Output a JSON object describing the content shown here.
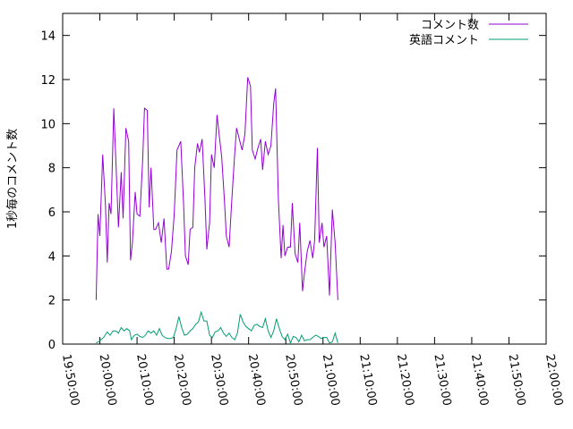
{
  "chart_data": {
    "type": "line",
    "title": "",
    "ylabel": "1秒毎のコメント数",
    "xlabel": "",
    "ylim": [
      0,
      15
    ],
    "y_ticks": [
      0,
      2,
      4,
      6,
      8,
      10,
      12,
      14
    ],
    "y_tick_labels": [
      "0",
      "2",
      "4",
      "6",
      "8",
      "10",
      "12",
      "14"
    ],
    "x_range": [
      "19:50:00",
      "22:00:00"
    ],
    "x_ticks": [
      "19:50:00",
      "20:00:00",
      "20:10:00",
      "20:20:00",
      "20:30:00",
      "20:40:00",
      "20:50:00",
      "21:00:00",
      "21:10:00",
      "21:20:00",
      "21:30:00",
      "21:40:00",
      "21:50:00",
      "22:00:00"
    ],
    "legend_position": "top-right",
    "grid": false,
    "series": [
      {
        "name": "コメント数",
        "color": "#9400d3",
        "points": [
          [
            "19:59:00",
            2.0
          ],
          [
            "19:59:30",
            5.9
          ],
          [
            "20:00:00",
            4.9
          ],
          [
            "20:00:45",
            8.6
          ],
          [
            "20:01:30",
            6.3
          ],
          [
            "20:02:00",
            3.7
          ],
          [
            "20:02:30",
            6.4
          ],
          [
            "20:03:00",
            5.9
          ],
          [
            "20:03:45",
            10.7
          ],
          [
            "20:04:30",
            7.5
          ],
          [
            "20:05:00",
            5.3
          ],
          [
            "20:05:45",
            7.8
          ],
          [
            "20:06:15",
            5.7
          ],
          [
            "20:07:00",
            9.8
          ],
          [
            "20:07:45",
            9.2
          ],
          [
            "20:08:15",
            3.8
          ],
          [
            "20:08:45",
            4.6
          ],
          [
            "20:09:30",
            6.9
          ],
          [
            "20:10:00",
            5.9
          ],
          [
            "20:10:45",
            5.8
          ],
          [
            "20:11:30",
            8.3
          ],
          [
            "20:12:00",
            10.7
          ],
          [
            "20:12:45",
            10.6
          ],
          [
            "20:13:15",
            6.2
          ],
          [
            "20:13:45",
            8.0
          ],
          [
            "20:14:30",
            5.2
          ],
          [
            "20:15:00",
            5.2
          ],
          [
            "20:15:45",
            5.5
          ],
          [
            "20:16:30",
            4.6
          ],
          [
            "20:17:15",
            5.7
          ],
          [
            "20:18:00",
            3.4
          ],
          [
            "20:18:30",
            3.4
          ],
          [
            "20:19:15",
            4.2
          ],
          [
            "20:20:00",
            5.9
          ],
          [
            "20:20:45",
            8.8
          ],
          [
            "20:21:45",
            9.2
          ],
          [
            "20:22:30",
            6.4
          ],
          [
            "20:23:00",
            4.0
          ],
          [
            "20:23:45",
            3.6
          ],
          [
            "20:24:15",
            5.2
          ],
          [
            "20:25:00",
            5.3
          ],
          [
            "20:25:30",
            8.0
          ],
          [
            "20:26:15",
            9.1
          ],
          [
            "20:26:45",
            8.7
          ],
          [
            "20:27:30",
            9.3
          ],
          [
            "20:28:15",
            6.6
          ],
          [
            "20:28:45",
            4.3
          ],
          [
            "20:29:30",
            5.5
          ],
          [
            "20:30:00",
            8.6
          ],
          [
            "20:30:45",
            8.0
          ],
          [
            "20:31:30",
            10.4
          ],
          [
            "20:32:00",
            9.6
          ],
          [
            "20:32:45",
            8.5
          ],
          [
            "20:33:30",
            6.5
          ],
          [
            "20:34:00",
            4.9
          ],
          [
            "20:34:45",
            4.4
          ],
          [
            "20:35:30",
            6.6
          ],
          [
            "20:36:15",
            8.6
          ],
          [
            "20:36:45",
            9.8
          ],
          [
            "20:37:30",
            9.3
          ],
          [
            "20:38:15",
            8.8
          ],
          [
            "20:39:00",
            9.5
          ],
          [
            "20:39:45",
            12.1
          ],
          [
            "20:40:30",
            11.7
          ],
          [
            "20:41:00",
            8.8
          ],
          [
            "20:41:45",
            8.4
          ],
          [
            "20:42:30",
            8.9
          ],
          [
            "20:43:15",
            9.3
          ],
          [
            "20:43:45",
            7.9
          ],
          [
            "20:44:30",
            9.2
          ],
          [
            "20:45:15",
            8.6
          ],
          [
            "20:46:00",
            9.0
          ],
          [
            "20:46:45",
            10.9
          ],
          [
            "20:47:15",
            11.6
          ],
          [
            "20:48:00",
            6.6
          ],
          [
            "20:48:45",
            3.9
          ],
          [
            "20:49:15",
            5.4
          ],
          [
            "20:49:45",
            4.0
          ],
          [
            "20:50:30",
            4.4
          ],
          [
            "20:51:15",
            4.4
          ],
          [
            "20:51:45",
            6.4
          ],
          [
            "20:52:30",
            4.1
          ],
          [
            "20:53:15",
            3.7
          ],
          [
            "20:53:45",
            5.5
          ],
          [
            "20:54:30",
            2.4
          ],
          [
            "20:55:00",
            3.2
          ],
          [
            "20:55:45",
            4.2
          ],
          [
            "20:56:30",
            4.7
          ],
          [
            "20:57:15",
            3.9
          ],
          [
            "20:57:45",
            4.7
          ],
          [
            "20:58:30",
            8.9
          ],
          [
            "20:59:00",
            4.6
          ],
          [
            "20:59:45",
            5.5
          ],
          [
            "21:00:15",
            4.4
          ],
          [
            "21:01:00",
            4.9
          ],
          [
            "21:01:45",
            2.2
          ],
          [
            "21:02:30",
            6.1
          ],
          [
            "21:03:15",
            4.6
          ],
          [
            "21:04:00",
            2.0
          ]
        ]
      },
      {
        "name": "英語コメント",
        "color": "#009e73",
        "points": [
          [
            "19:59:00",
            0.05
          ],
          [
            "20:00:00",
            0.15
          ],
          [
            "20:01:00",
            0.3
          ],
          [
            "20:02:00",
            0.55
          ],
          [
            "20:02:45",
            0.4
          ],
          [
            "20:03:30",
            0.6
          ],
          [
            "20:04:15",
            0.6
          ],
          [
            "20:05:00",
            0.5
          ],
          [
            "20:05:45",
            0.75
          ],
          [
            "20:06:30",
            0.6
          ],
          [
            "20:07:15",
            0.7
          ],
          [
            "20:08:00",
            0.6
          ],
          [
            "20:08:30",
            0.2
          ],
          [
            "20:09:15",
            0.4
          ],
          [
            "20:10:00",
            0.45
          ],
          [
            "20:10:45",
            0.35
          ],
          [
            "20:11:30",
            0.3
          ],
          [
            "20:12:15",
            0.4
          ],
          [
            "20:13:00",
            0.6
          ],
          [
            "20:13:45",
            0.5
          ],
          [
            "20:14:30",
            0.6
          ],
          [
            "20:15:15",
            0.4
          ],
          [
            "20:16:00",
            0.7
          ],
          [
            "20:16:45",
            0.4
          ],
          [
            "20:17:30",
            0.3
          ],
          [
            "20:18:15",
            0.25
          ],
          [
            "20:19:00",
            0.25
          ],
          [
            "20:19:45",
            0.3
          ],
          [
            "20:20:30",
            0.7
          ],
          [
            "20:21:15",
            1.25
          ],
          [
            "20:22:00",
            0.75
          ],
          [
            "20:22:45",
            0.4
          ],
          [
            "20:23:30",
            0.45
          ],
          [
            "20:24:15",
            0.6
          ],
          [
            "20:25:00",
            0.7
          ],
          [
            "20:25:45",
            0.9
          ],
          [
            "20:26:30",
            1.0
          ],
          [
            "20:27:15",
            1.45
          ],
          [
            "20:28:00",
            1.05
          ],
          [
            "20:28:45",
            1.05
          ],
          [
            "20:29:30",
            0.4
          ],
          [
            "20:30:15",
            0.3
          ],
          [
            "20:31:00",
            0.55
          ],
          [
            "20:31:45",
            0.6
          ],
          [
            "20:32:30",
            0.75
          ],
          [
            "20:33:15",
            0.5
          ],
          [
            "20:34:00",
            0.35
          ],
          [
            "20:34:45",
            0.5
          ],
          [
            "20:35:30",
            0.3
          ],
          [
            "20:36:15",
            0.2
          ],
          [
            "20:37:00",
            0.5
          ],
          [
            "20:37:45",
            1.35
          ],
          [
            "20:38:30",
            1.0
          ],
          [
            "20:39:15",
            0.8
          ],
          [
            "20:40:00",
            0.7
          ],
          [
            "20:40:45",
            0.6
          ],
          [
            "20:41:30",
            0.85
          ],
          [
            "20:42:15",
            0.9
          ],
          [
            "20:43:00",
            0.8
          ],
          [
            "20:43:45",
            0.75
          ],
          [
            "20:44:30",
            1.15
          ],
          [
            "20:45:15",
            0.6
          ],
          [
            "20:46:00",
            0.3
          ],
          [
            "20:46:45",
            0.6
          ],
          [
            "20:47:30",
            1.15
          ],
          [
            "20:48:15",
            0.7
          ],
          [
            "20:49:00",
            0.35
          ],
          [
            "20:49:45",
            0.2
          ],
          [
            "20:50:30",
            0.45
          ],
          [
            "20:51:15",
            0.05
          ],
          [
            "20:52:00",
            0.35
          ],
          [
            "20:52:45",
            0.3
          ],
          [
            "20:53:30",
            0.1
          ],
          [
            "20:54:15",
            0.4
          ],
          [
            "20:55:00",
            0.15
          ],
          [
            "20:55:45",
            0.2
          ],
          [
            "20:56:30",
            0.2
          ],
          [
            "20:57:15",
            0.3
          ],
          [
            "20:58:00",
            0.4
          ],
          [
            "20:58:45",
            0.35
          ],
          [
            "20:59:30",
            0.25
          ],
          [
            "21:00:15",
            0.3
          ],
          [
            "21:01:00",
            0.3
          ],
          [
            "21:01:45",
            0.05
          ],
          [
            "21:02:30",
            0.1
          ],
          [
            "21:03:15",
            0.5
          ],
          [
            "21:04:00",
            0.05
          ]
        ]
      }
    ]
  }
}
